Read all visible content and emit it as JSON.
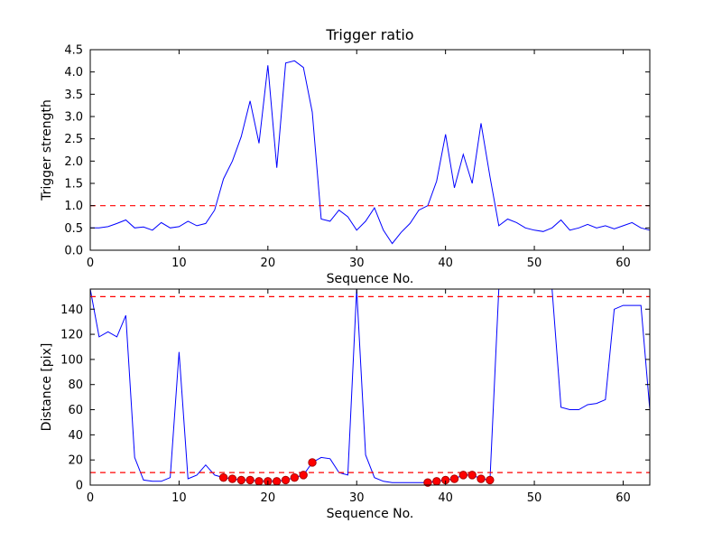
{
  "figure": {
    "background": "#ffffff",
    "colors": {
      "line": "#0000ff",
      "threshold": "#ff0000",
      "marker_face": "#ff0000",
      "marker_edge": "#aa0000",
      "axis": "#000000"
    }
  },
  "chart_data": [
    {
      "id": "trigger-strength",
      "type": "line",
      "title": "Trigger ratio",
      "xlabel": "Sequence No.",
      "ylabel": "Trigger strength",
      "xlim": [
        0,
        63
      ],
      "ylim": [
        0,
        4.5
      ],
      "xtick_values": [
        0,
        10,
        20,
        30,
        40,
        50,
        60
      ],
      "xtick_labels": [
        "0",
        "10",
        "20",
        "30",
        "40",
        "50",
        "60"
      ],
      "ytick_values": [
        0,
        0.5,
        1.0,
        1.5,
        2.0,
        2.5,
        3.0,
        3.5,
        4.0,
        4.5
      ],
      "ytick_labels": [
        "0.0",
        "0.5",
        "1.0",
        "1.5",
        "2.0",
        "2.5",
        "3.0",
        "3.5",
        "4.0",
        "4.5"
      ],
      "thresholds": [
        1.0
      ],
      "legend": "off",
      "grid": "off",
      "x": [
        0,
        1,
        2,
        3,
        4,
        5,
        6,
        7,
        8,
        9,
        10,
        11,
        12,
        13,
        14,
        15,
        16,
        17,
        18,
        19,
        20,
        21,
        22,
        23,
        24,
        25,
        26,
        27,
        28,
        29,
        30,
        31,
        32,
        33,
        34,
        35,
        36,
        37,
        38,
        39,
        40,
        41,
        42,
        43,
        44,
        45,
        46,
        47,
        48,
        49,
        50,
        51,
        52,
        53,
        54,
        55,
        56,
        57,
        58,
        59,
        60,
        61,
        62,
        63
      ],
      "y": [
        0.5,
        0.5,
        0.53,
        0.6,
        0.68,
        0.5,
        0.52,
        0.45,
        0.62,
        0.5,
        0.53,
        0.65,
        0.55,
        0.6,
        0.9,
        1.6,
        2.0,
        2.55,
        3.35,
        2.4,
        4.15,
        1.85,
        4.2,
        4.25,
        4.1,
        3.1,
        0.7,
        0.65,
        0.9,
        0.75,
        0.45,
        0.65,
        0.95,
        0.45,
        0.15,
        0.4,
        0.6,
        0.9,
        1.0,
        1.55,
        2.6,
        1.4,
        2.15,
        1.5,
        2.85,
        1.65,
        0.55,
        0.7,
        0.62,
        0.5,
        0.45,
        0.42,
        0.5,
        0.68,
        0.45,
        0.5,
        0.58,
        0.5,
        0.55,
        0.48,
        0.55,
        0.62,
        0.5,
        0.45
      ]
    },
    {
      "id": "distance",
      "type": "line",
      "title": "",
      "xlabel": "Sequence No.",
      "ylabel": "Distance [pix]",
      "xlim": [
        0,
        63
      ],
      "ylim": [
        0,
        156
      ],
      "xtick_values": [
        0,
        10,
        20,
        30,
        40,
        50,
        60
      ],
      "xtick_labels": [
        "0",
        "10",
        "20",
        "30",
        "40",
        "50",
        "60"
      ],
      "ytick_values": [
        0,
        20,
        40,
        60,
        80,
        100,
        120,
        140
      ],
      "ytick_labels": [
        "0",
        "20",
        "40",
        "60",
        "80",
        "100",
        "120",
        "140"
      ],
      "thresholds": [
        150,
        10
      ],
      "legend": "off",
      "grid": "off",
      "x": [
        0,
        1,
        2,
        3,
        4,
        5,
        6,
        7,
        8,
        9,
        10,
        11,
        12,
        13,
        14,
        15,
        16,
        17,
        18,
        19,
        20,
        21,
        22,
        23,
        24,
        25,
        26,
        27,
        28,
        29,
        30,
        31,
        32,
        33,
        34,
        35,
        36,
        37,
        38,
        39,
        40,
        41,
        42,
        43,
        44,
        45,
        46,
        47,
        48,
        49,
        50,
        51,
        52,
        53,
        54,
        55,
        56,
        57,
        58,
        59,
        60,
        61,
        62,
        63
      ],
      "y": [
        156,
        118,
        122,
        118,
        135,
        22,
        4,
        3,
        3,
        6,
        106,
        5,
        8,
        16,
        8,
        6,
        5,
        4,
        4,
        3,
        3,
        3,
        4,
        6,
        8,
        18,
        22,
        21,
        10,
        8,
        156,
        24,
        6,
        3,
        2,
        2,
        2,
        2,
        2,
        3,
        4,
        5,
        8,
        8,
        5,
        4,
        156,
        156,
        156,
        156,
        156,
        156,
        156,
        62,
        60,
        60,
        64,
        65,
        68,
        140,
        143,
        143,
        143,
        60
      ],
      "markers": {
        "x": [
          15,
          16,
          17,
          18,
          19,
          20,
          21,
          22,
          23,
          24,
          25,
          38,
          39,
          40,
          41,
          42,
          43,
          44,
          45
        ],
        "y": [
          6,
          5,
          4,
          4,
          3,
          3,
          3,
          4,
          6,
          8,
          18,
          2,
          3,
          4,
          5,
          8,
          8,
          5,
          4
        ]
      }
    }
  ]
}
